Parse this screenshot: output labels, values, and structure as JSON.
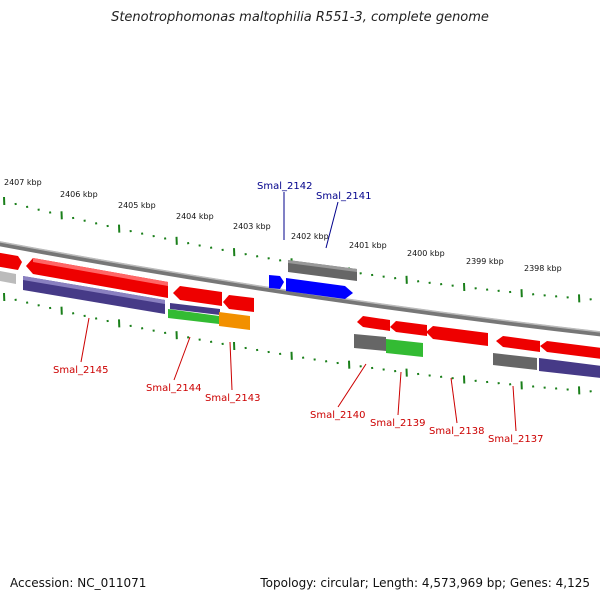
{
  "title": "Stenotrophomonas maltophilia R551-3, complete genome",
  "footer": {
    "accession": "Accession: NC_011071",
    "summary": "Topology: circular; Length: 4,573,969 bp; Genes: 4,125"
  },
  "colors": {
    "forward_gene": "#0000ff",
    "reverse_gene": "#ee0000",
    "gray_feature": "#666666",
    "purple_feature": "#463a87",
    "green_feature": "#33bb33",
    "orange_feature": "#f29000",
    "label_forward": "#00008b",
    "label_reverse": "#cc0000",
    "scale_ticks": "#1a7f1a"
  },
  "scale_labels": [
    "2407 kbp",
    "2406 kbp",
    "2405 kbp",
    "2404 kbp",
    "2403 kbp",
    "2402 kbp",
    "2401 kbp",
    "2400 kbp",
    "2399 kbp",
    "2398 kbp"
  ],
  "forward_gene_labels": [
    "Smal_2142",
    "Smal_2141"
  ],
  "reverse_gene_labels": [
    "Smal_2145",
    "Smal_2144",
    "Smal_2143",
    "Smal_2140",
    "Smal_2139",
    "Smal_2138",
    "Smal_2137"
  ]
}
